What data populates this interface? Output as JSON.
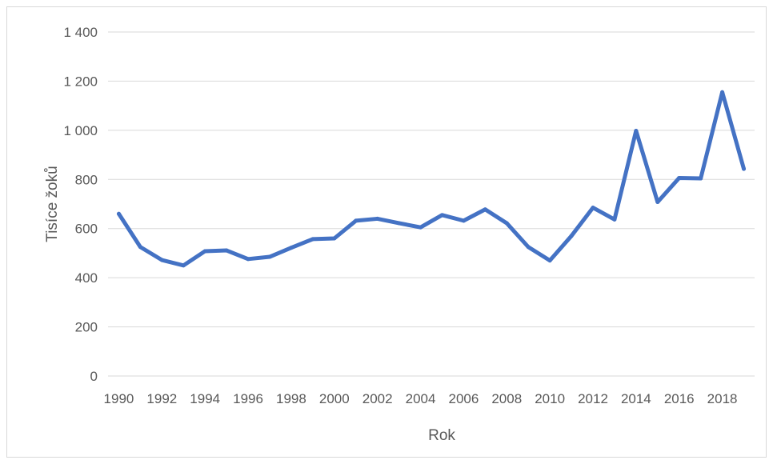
{
  "chart_data": {
    "type": "line",
    "title": "",
    "xlabel": "Rok",
    "ylabel": "Tisíce žoků",
    "ylim": [
      0,
      1400
    ],
    "yticks": [
      0,
      200,
      400,
      600,
      800,
      1000,
      1200,
      1400
    ],
    "ytick_labels": [
      "0",
      "200",
      "400",
      "600",
      "800",
      "1 000",
      "1 200",
      "1 400"
    ],
    "xtick_labels": [
      "1990",
      "1992",
      "1994",
      "1996",
      "1998",
      "2000",
      "2002",
      "2004",
      "2006",
      "2008",
      "2010",
      "2012",
      "2014",
      "2016",
      "2018"
    ],
    "grid": true,
    "legend": "none",
    "x": [
      1990,
      1991,
      1992,
      1993,
      1994,
      1995,
      1996,
      1997,
      1998,
      1999,
      2000,
      2001,
      2002,
      2003,
      2004,
      2005,
      2006,
      2007,
      2008,
      2009,
      2010,
      2011,
      2012,
      2013,
      2014,
      2015,
      2016,
      2017,
      2018,
      2019
    ],
    "series": [
      {
        "color": "#4472c4",
        "values": [
          660,
          525,
          472,
          450,
          508,
          511,
          476,
          485,
          522,
          557,
          560,
          632,
          640,
          622,
          605,
          655,
          632,
          678,
          622,
          525,
          470,
          570,
          685,
          637,
          998,
          708,
          806,
          804,
          1155,
          843
        ]
      }
    ]
  }
}
